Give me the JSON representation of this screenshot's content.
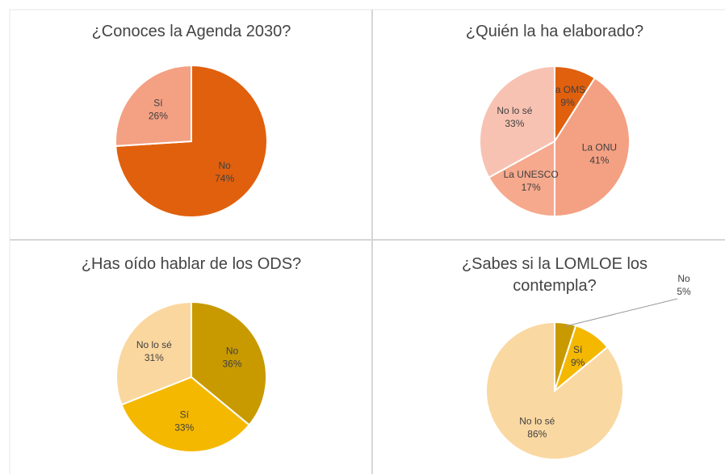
{
  "chart_data": [
    {
      "type": "pie",
      "title": "¿Conoces la Agenda 2030?",
      "categories": [
        "No",
        "Sí"
      ],
      "values": [
        74,
        26
      ],
      "value_labels": [
        "74%",
        "26%"
      ],
      "colors": [
        "#e0600e",
        "#f4a083"
      ]
    },
    {
      "type": "pie",
      "title": "¿Quién la ha elaborado?",
      "categories": [
        "La OMS",
        "La ONU",
        "La UNESCO",
        "No lo sé"
      ],
      "values": [
        9,
        41,
        17,
        33
      ],
      "value_labels": [
        "9%",
        "41%",
        "17%",
        "33%"
      ],
      "colors": [
        "#e0600e",
        "#f4a083",
        "#f6a98d",
        "#f8c2b2"
      ]
    },
    {
      "type": "pie",
      "title": "¿Has oído hablar de los ODS?",
      "categories": [
        "No",
        "Sí",
        "No lo sé"
      ],
      "values": [
        36,
        33,
        31
      ],
      "value_labels": [
        "36%",
        "33%",
        "31%"
      ],
      "colors": [
        "#c89a00",
        "#f5b800",
        "#fad79e"
      ]
    },
    {
      "type": "pie",
      "title": "¿Sabes si la LOMLOE los contempla?",
      "categories": [
        "No",
        "Sí",
        "No lo sé"
      ],
      "values": [
        5,
        9,
        86
      ],
      "value_labels": [
        "5%",
        "9%",
        "86%"
      ],
      "colors": [
        "#c89a00",
        "#f5b800",
        "#fad8a2"
      ]
    }
  ]
}
